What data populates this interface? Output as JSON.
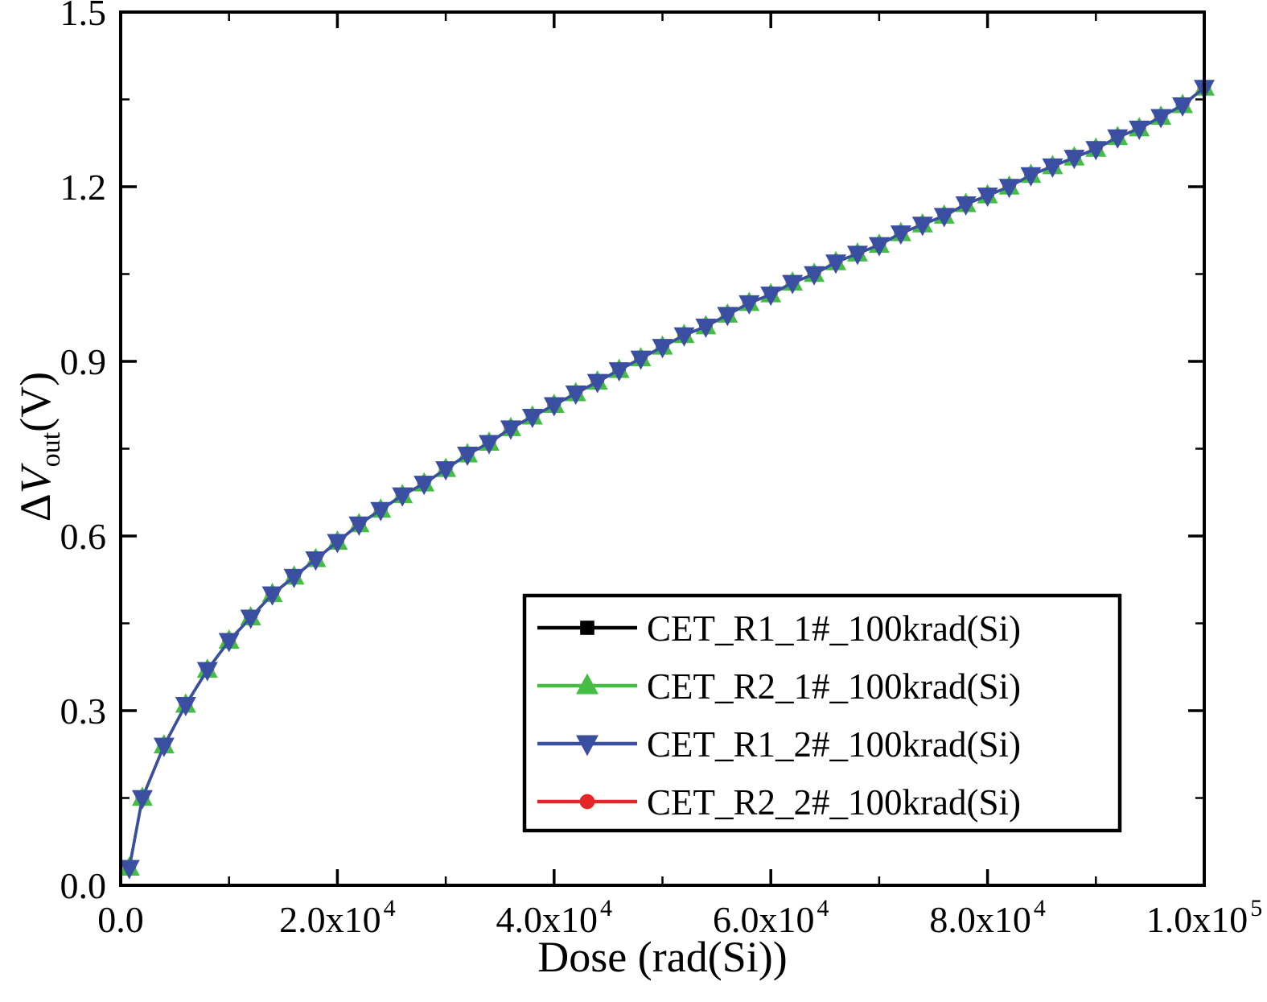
{
  "figure": {
    "ylabel": {
      "delta": "Δ",
      "symbol": "V",
      "sub": "out",
      "unit": "(V)"
    }
  },
  "chart_data": {
    "type": "line",
    "title": "",
    "xlabel": "Dose (rad(Si))",
    "ylabel": "ΔV_out(V)",
    "xlim": [
      0,
      100000
    ],
    "ylim": [
      0.0,
      1.5
    ],
    "grid": "off",
    "legend_position": "inside lower right",
    "xticks": [
      {
        "v": 0,
        "t": "0.0"
      },
      {
        "v": 20000,
        "t": "2.0x10",
        "sup": "4"
      },
      {
        "v": 40000,
        "t": "4.0x10",
        "sup": "4"
      },
      {
        "v": 60000,
        "t": "6.0x10",
        "sup": "4"
      },
      {
        "v": 80000,
        "t": "8.0x10",
        "sup": "4"
      },
      {
        "v": 100000,
        "t": "1.0x10",
        "sup": "5"
      }
    ],
    "yticks": [
      {
        "v": 0.0,
        "t": "0.0"
      },
      {
        "v": 0.3,
        "t": "0.3"
      },
      {
        "v": 0.6,
        "t": "0.6"
      },
      {
        "v": 0.9,
        "t": "0.9"
      },
      {
        "v": 1.2,
        "t": "1.2"
      },
      {
        "v": 1.5,
        "t": "1.5"
      }
    ],
    "xminor": [
      10000,
      30000,
      50000,
      70000,
      90000
    ],
    "yminor": [
      0.15,
      0.45,
      0.75,
      1.05,
      1.35
    ],
    "x": [
      800,
      2000,
      4000,
      6000,
      8000,
      10000,
      12000,
      14000,
      16000,
      18000,
      20000,
      22000,
      24000,
      26000,
      28000,
      30000,
      32000,
      34000,
      36000,
      38000,
      40000,
      42000,
      44000,
      46000,
      48000,
      50000,
      52000,
      54000,
      56000,
      58000,
      60000,
      62000,
      64000,
      66000,
      68000,
      70000,
      72000,
      74000,
      76000,
      78000,
      80000,
      82000,
      84000,
      86000,
      88000,
      90000,
      92000,
      94000,
      96000,
      98000,
      100000
    ],
    "series": [
      {
        "name": "CET_R1_1#_100krad(Si)",
        "color": "#000000",
        "marker": "square",
        "values": [
          0.03,
          0.15,
          0.24,
          0.31,
          0.37,
          0.42,
          0.46,
          0.5,
          0.53,
          0.56,
          0.59,
          0.62,
          0.645,
          0.67,
          0.69,
          0.715,
          0.74,
          0.76,
          0.785,
          0.805,
          0.825,
          0.845,
          0.865,
          0.885,
          0.905,
          0.925,
          0.945,
          0.96,
          0.98,
          1.0,
          1.015,
          1.035,
          1.05,
          1.07,
          1.085,
          1.1,
          1.12,
          1.135,
          1.15,
          1.17,
          1.185,
          1.2,
          1.22,
          1.235,
          1.25,
          1.265,
          1.285,
          1.3,
          1.32,
          1.34,
          1.37
        ]
      },
      {
        "name": "CET_R2_1#_100krad(Si)",
        "color": "#45bd45",
        "marker": "triangle-up",
        "values": [
          0.03,
          0.15,
          0.24,
          0.31,
          0.37,
          0.42,
          0.46,
          0.5,
          0.53,
          0.56,
          0.59,
          0.62,
          0.645,
          0.67,
          0.69,
          0.715,
          0.74,
          0.76,
          0.785,
          0.805,
          0.825,
          0.845,
          0.865,
          0.885,
          0.905,
          0.925,
          0.945,
          0.96,
          0.98,
          1.0,
          1.015,
          1.035,
          1.05,
          1.07,
          1.085,
          1.1,
          1.12,
          1.135,
          1.15,
          1.17,
          1.185,
          1.2,
          1.22,
          1.235,
          1.25,
          1.265,
          1.285,
          1.3,
          1.32,
          1.34,
          1.37
        ]
      },
      {
        "name": "CET_R1_2#_100krad(Si)",
        "color": "#3b4fa2",
        "marker": "triangle-down",
        "values": [
          0.03,
          0.15,
          0.24,
          0.31,
          0.37,
          0.42,
          0.46,
          0.5,
          0.53,
          0.56,
          0.59,
          0.62,
          0.645,
          0.67,
          0.69,
          0.715,
          0.74,
          0.76,
          0.785,
          0.805,
          0.825,
          0.845,
          0.865,
          0.885,
          0.905,
          0.925,
          0.945,
          0.96,
          0.98,
          1.0,
          1.015,
          1.035,
          1.05,
          1.07,
          1.085,
          1.1,
          1.12,
          1.135,
          1.15,
          1.17,
          1.185,
          1.2,
          1.22,
          1.235,
          1.25,
          1.265,
          1.285,
          1.3,
          1.32,
          1.34,
          1.37
        ]
      },
      {
        "name": "CET_R2_2#_100krad(Si)",
        "color": "#e62529",
        "marker": "circle",
        "values": [
          0.03,
          0.15,
          0.24,
          0.31,
          0.37,
          0.42,
          0.46,
          0.5,
          0.53,
          0.56,
          0.59,
          0.62,
          0.645,
          0.67,
          0.69,
          0.715,
          0.74,
          0.76,
          0.785,
          0.805,
          0.825,
          0.845,
          0.865,
          0.885,
          0.905,
          0.925,
          0.945,
          0.96,
          0.98,
          1.0,
          1.015,
          1.035,
          1.05,
          1.07,
          1.085,
          1.1,
          1.12,
          1.135,
          1.15,
          1.17,
          1.185,
          1.2,
          1.22,
          1.235,
          1.25,
          1.265,
          1.285,
          1.3,
          1.32,
          1.34,
          1.37
        ]
      }
    ]
  }
}
